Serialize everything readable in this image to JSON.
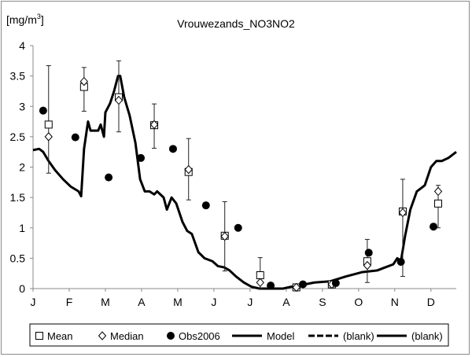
{
  "chart_data": {
    "type": "line",
    "title": "Vrouwezands_NO3NO2",
    "ylabel": "[mg/m",
    "ylabel_sup": "3",
    "ylabel_close": "]",
    "xlabel": "",
    "ylim": [
      0,
      4
    ],
    "yticks": [
      0,
      0.5,
      1,
      1.5,
      2,
      2.5,
      3,
      3.5,
      4
    ],
    "ytick_labels": [
      "0",
      "0.5",
      "1",
      "1.5",
      "2",
      "2.5",
      "3",
      "3.5",
      "4"
    ],
    "xlim_months": [
      0,
      11.7
    ],
    "xtick_labels": [
      "J",
      "F",
      "M",
      "A",
      "M",
      "J",
      "J",
      "A",
      "S",
      "O",
      "N",
      "D"
    ],
    "grid": false,
    "legend_position": "bottom",
    "legend": [
      "Mean",
      "Median",
      "Obs2006",
      "Model",
      "(blank)",
      "(blank)"
    ],
    "series": [
      {
        "name": "Mean",
        "marker": "square",
        "x": [
          0.43,
          1.41,
          2.37,
          3.35,
          4.3,
          5.3,
          6.28,
          7.28,
          8.26,
          9.24,
          10.22,
          11.2
        ],
        "values": [
          2.7,
          3.32,
          3.15,
          2.69,
          1.92,
          0.87,
          0.22,
          0.02,
          0.07,
          0.45,
          1.27,
          1.4
        ],
        "err_low": [
          1.9,
          2.92,
          2.58,
          2.31,
          1.46,
          0.29,
          0.0,
          0.0,
          0.05,
          0.1,
          0.2,
          1.0
        ],
        "err_high": [
          3.67,
          3.64,
          3.75,
          3.04,
          2.47,
          1.43,
          0.51,
          0.04,
          0.09,
          0.81,
          1.8,
          1.7
        ]
      },
      {
        "name": "Median",
        "marker": "diamond",
        "x": [
          0.43,
          1.41,
          2.37,
          3.35,
          4.3,
          5.3,
          6.28,
          7.28,
          8.26,
          9.24,
          10.22,
          11.2
        ],
        "values": [
          2.5,
          3.41,
          3.1,
          2.7,
          1.96,
          0.86,
          0.1,
          0.02,
          0.07,
          0.38,
          1.25,
          1.6
        ]
      },
      {
        "name": "Obs2006",
        "marker": "circle",
        "x": [
          0.28,
          1.17,
          2.09,
          2.98,
          3.87,
          4.78,
          5.67,
          6.57,
          7.46,
          8.37,
          9.28,
          10.17,
          11.07
        ],
        "values": [
          2.93,
          2.49,
          1.83,
          2.15,
          2.3,
          1.37,
          1.0,
          0.05,
          0.07,
          0.09,
          0.59,
          0.44,
          1.02
        ]
      },
      {
        "name": "Model",
        "marker": "line",
        "x": [
          0,
          0.17,
          0.28,
          0.43,
          0.61,
          0.83,
          1.04,
          1.26,
          1.33,
          1.41,
          1.52,
          1.59,
          1.7,
          1.8,
          1.87,
          1.96,
          2.0,
          2.13,
          2.24,
          2.35,
          2.41,
          2.52,
          2.67,
          2.83,
          2.96,
          3.09,
          3.22,
          3.35,
          3.43,
          3.61,
          3.7,
          3.83,
          3.96,
          4.13,
          4.26,
          4.39,
          4.57,
          4.74,
          4.96,
          5.11,
          5.28,
          5.43,
          5.61,
          5.83,
          6.04,
          6.26,
          6.48,
          6.91,
          7.13,
          7.35,
          7.78,
          8.22,
          8.65,
          9.09,
          9.52,
          9.74,
          9.96,
          10.07,
          10.17,
          10.28,
          10.43,
          10.61,
          10.83,
          11.0,
          11.15,
          11.3,
          11.48,
          11.7
        ],
        "values": [
          2.28,
          2.3,
          2.25,
          2.1,
          1.95,
          1.8,
          1.68,
          1.6,
          1.52,
          2.3,
          2.75,
          2.6,
          2.6,
          2.6,
          2.7,
          2.5,
          2.9,
          3.05,
          3.25,
          3.5,
          3.5,
          3.15,
          2.85,
          2.4,
          1.8,
          1.6,
          1.6,
          1.55,
          1.6,
          1.5,
          1.3,
          1.5,
          1.4,
          1.1,
          0.95,
          0.9,
          0.6,
          0.5,
          0.45,
          0.37,
          0.35,
          0.3,
          0.2,
          0.1,
          0.03,
          0.0,
          0.0,
          0.0,
          0.03,
          0.05,
          0.1,
          0.12,
          0.2,
          0.27,
          0.3,
          0.35,
          0.4,
          0.5,
          0.45,
          0.85,
          1.3,
          1.6,
          1.7,
          2.0,
          2.1,
          2.1,
          2.15,
          2.25
        ]
      }
    ]
  }
}
